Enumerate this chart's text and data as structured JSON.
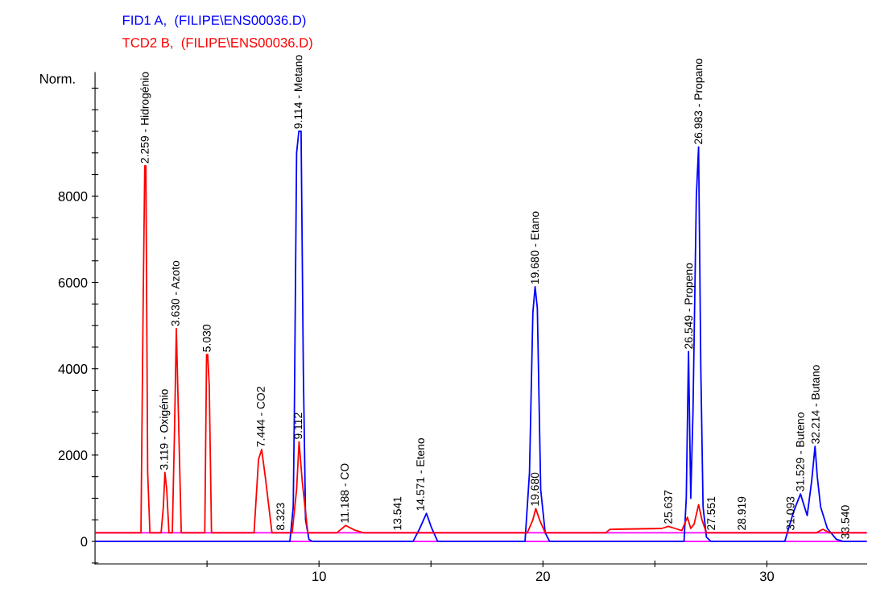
{
  "chart_data": {
    "type": "line",
    "ylabel": "Norm.",
    "xlim": [
      0,
      34.46
    ],
    "ylim": [
      -520,
      10860
    ],
    "xticks": [
      {
        "value": 5,
        "label": null
      },
      10,
      {
        "value": 15,
        "label": null
      },
      20,
      {
        "value": 25,
        "label": null
      },
      30
    ],
    "yticks": [
      {
        "value": -500,
        "label": null
      },
      0,
      {
        "value": 500,
        "label": null
      },
      {
        "value": 1000,
        "label": null
      },
      {
        "value": 1500,
        "label": null
      },
      2000,
      {
        "value": 2500,
        "label": null
      },
      {
        "value": 3000,
        "label": null
      },
      {
        "value": 3500,
        "label": null
      },
      4000,
      {
        "value": 4500,
        "label": null
      },
      {
        "value": 5000,
        "label": null
      },
      {
        "value": 5500,
        "label": null
      },
      6000,
      {
        "value": 6500,
        "label": null
      },
      {
        "value": 7000,
        "label": null
      },
      {
        "value": 7500,
        "label": null
      },
      8000,
      {
        "value": 8500,
        "label": null
      },
      {
        "value": 9000,
        "label": null
      },
      {
        "value": 9500,
        "label": null
      },
      {
        "value": 10000,
        "label": null
      },
      {
        "value": 10500,
        "label": null
      }
    ],
    "grid": false,
    "series": [
      {
        "name": "FID1 A,  (FILIPE\\ENS00036.D)",
        "color": "#0000ff",
        "x": [
          0,
          8.7,
          8.85,
          8.9,
          9.0,
          9.1,
          9.2,
          9.3,
          9.4,
          9.55,
          9.7,
          14.2,
          14.5,
          14.8,
          15.0,
          15.3,
          19.2,
          19.4,
          19.55,
          19.65,
          19.75,
          19.9,
          20.1,
          20.3,
          26.3,
          26.4,
          26.5,
          26.6,
          26.7,
          26.85,
          26.95,
          27.05,
          27.15,
          27.3,
          27.5,
          30.8,
          31.2,
          31.5,
          31.8,
          32.0,
          32.15,
          32.25,
          32.4,
          32.7,
          33.1,
          33.4,
          34.46
        ],
        "values": [
          0,
          0,
          800,
          3000,
          9000,
          9500,
          9500,
          4000,
          500,
          50,
          0,
          0,
          300,
          650,
          350,
          0,
          0,
          1600,
          5300,
          5900,
          5400,
          1200,
          200,
          0,
          0,
          1000,
          4400,
          1000,
          3000,
          8000,
          9140,
          4000,
          800,
          100,
          0,
          0,
          700,
          1100,
          600,
          1400,
          2200,
          1500,
          800,
          300,
          50,
          0,
          0
        ]
      },
      {
        "name": "TCD2 B,  (FILIPE\\ENS00036.D)",
        "color": "#ff0000",
        "x": [
          0,
          2.05,
          2.15,
          2.22,
          2.27,
          2.35,
          2.45,
          2.95,
          3.05,
          3.12,
          3.2,
          3.3,
          3.45,
          3.55,
          3.63,
          3.72,
          3.85,
          4.9,
          4.98,
          5.03,
          5.1,
          5.2,
          7.1,
          7.3,
          7.44,
          7.6,
          7.9,
          8.8,
          9.0,
          9.11,
          9.25,
          9.5,
          10.8,
          11.19,
          11.6,
          12.0,
          19.3,
          19.55,
          19.68,
          19.85,
          20.1,
          22.8,
          23.0,
          25.3,
          25.6,
          25.9,
          26.2,
          26.45,
          26.6,
          26.75,
          26.95,
          27.1,
          27.3,
          32.2,
          32.5,
          32.8,
          34.46
        ],
        "values": [
          200,
          200,
          5600,
          8700,
          8700,
          1600,
          200,
          200,
          800,
          1600,
          1200,
          200,
          200,
          2600,
          4930,
          3000,
          200,
          200,
          4330,
          4330,
          3600,
          200,
          200,
          1900,
          2130,
          1500,
          200,
          200,
          1200,
          2310,
          1400,
          200,
          200,
          370,
          260,
          200,
          200,
          500,
          760,
          500,
          200,
          200,
          280,
          300,
          350,
          300,
          250,
          560,
          300,
          400,
          850,
          500,
          200,
          200,
          280,
          200,
          200
        ]
      }
    ],
    "ref_lines": [
      {
        "axis": "y",
        "value": 0,
        "color": "#ff00ff"
      },
      {
        "axis": "y",
        "value": 200,
        "color": "#ff00ff"
      }
    ],
    "annotations": [
      {
        "text": "2.259 - Hidrogénio",
        "x": 2.259,
        "y": 8700
      },
      {
        "text": "3.119 - Oxigénio",
        "x": 3.119,
        "y": 1600
      },
      {
        "text": "3.630 - Azoto",
        "x": 3.63,
        "y": 4930
      },
      {
        "text": "5.030",
        "x": 5.03,
        "y": 4330
      },
      {
        "text": "7.444 - CO2",
        "x": 7.444,
        "y": 2130
      },
      {
        "text": "8.323",
        "x": 8.323,
        "y": 200
      },
      {
        "text": "9.112",
        "x": 9.112,
        "y": 2310
      },
      {
        "text": "9.114 - Metano",
        "x": 9.114,
        "y": 9500
      },
      {
        "text": "11.188 - CO",
        "x": 11.188,
        "y": 370
      },
      {
        "text": "13.541",
        "x": 13.541,
        "y": 200
      },
      {
        "text": "14.571 - Eteno",
        "x": 14.571,
        "y": 650
      },
      {
        "text": "19.680 - Etano",
        "x": 19.68,
        "y": 5900
      },
      {
        "text": "19.680",
        "x": 19.68,
        "y": 760
      },
      {
        "text": "25.637",
        "x": 25.637,
        "y": 350
      },
      {
        "text": "26.549 - Propeno",
        "x": 26.549,
        "y": 4400
      },
      {
        "text": "26.983 - Propano",
        "x": 26.983,
        "y": 9140
      },
      {
        "text": "27.551",
        "x": 27.551,
        "y": 200
      },
      {
        "text": "28.919",
        "x": 28.919,
        "y": 200
      },
      {
        "text": "31.093",
        "x": 31.093,
        "y": 200
      },
      {
        "text": "31.529 - Buteno",
        "x": 31.529,
        "y": 1100
      },
      {
        "text": "32.214 - Butano",
        "x": 32.214,
        "y": 2200
      },
      {
        "text": "33.540",
        "x": 33.54,
        "y": 0
      }
    ]
  }
}
